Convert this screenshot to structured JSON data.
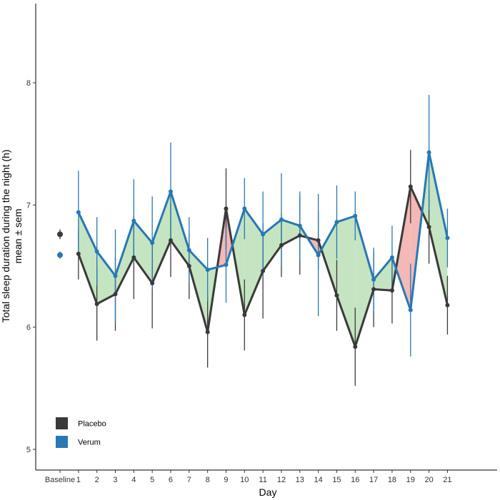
{
  "chart_data": {
    "type": "line",
    "xlabel": "Day",
    "ylabel_lines": [
      "Total sleep duration during the night (h)",
      "mean ± sem"
    ],
    "ylim": [
      4.85,
      8.55
    ],
    "yticks": [
      5,
      6,
      7,
      8
    ],
    "x_tick_labels": [
      "Baseline",
      "1",
      "2",
      "3",
      "4",
      "5",
      "6",
      "7",
      "8",
      "9",
      "10",
      "11",
      "12",
      "13",
      "14",
      "15",
      "16",
      "17",
      "18",
      "19",
      "20",
      "21"
    ],
    "days": [
      1,
      2,
      3,
      4,
      5,
      6,
      7,
      8,
      9,
      10,
      11,
      12,
      13,
      14,
      15,
      16,
      17,
      18,
      19,
      20,
      21
    ],
    "baseline": {
      "Placebo": {
        "mean": 6.76,
        "sem": 0.04
      },
      "Verum": {
        "mean": 6.59,
        "sem": 0.03
      }
    },
    "series": [
      {
        "name": "Placebo",
        "color": "#3a3a3a",
        "values": [
          6.6,
          6.19,
          6.27,
          6.57,
          6.36,
          6.71,
          6.5,
          5.96,
          6.97,
          6.1,
          6.46,
          6.67,
          6.75,
          6.71,
          6.26,
          5.84,
          6.31,
          6.3,
          7.15,
          6.82,
          6.18
        ],
        "sem": [
          0.21,
          0.3,
          0.3,
          0.34,
          0.37,
          0.3,
          0.27,
          0.29,
          0.33,
          0.29,
          0.39,
          0.26,
          0.32,
          0.24,
          0.29,
          0.32,
          0.31,
          0.27,
          0.3,
          0.3,
          0.24
        ]
      },
      {
        "name": "Verum",
        "color": "#2878b5",
        "values": [
          6.94,
          6.62,
          6.42,
          6.87,
          6.69,
          7.11,
          6.63,
          6.47,
          6.51,
          6.97,
          6.76,
          6.88,
          6.83,
          6.59,
          6.86,
          6.91,
          6.39,
          6.57,
          6.14,
          7.43,
          6.73
        ],
        "sem": [
          0.34,
          0.28,
          0.38,
          0.34,
          0.38,
          0.4,
          0.27,
          0.26,
          0.31,
          0.25,
          0.35,
          0.38,
          0.28,
          0.5,
          0.3,
          0.2,
          0.26,
          0.26,
          0.38,
          0.47,
          0.24
        ]
      }
    ],
    "fill_colors": {
      "verum_higher": "#c5e4c1",
      "placebo_higher": "#f4b8b6"
    },
    "legend": {
      "position": "bottom-left",
      "items": [
        {
          "label": "Placebo",
          "color": "#3a3a3a"
        },
        {
          "label": "Verum",
          "color": "#2878b5"
        }
      ]
    },
    "grid": false
  }
}
